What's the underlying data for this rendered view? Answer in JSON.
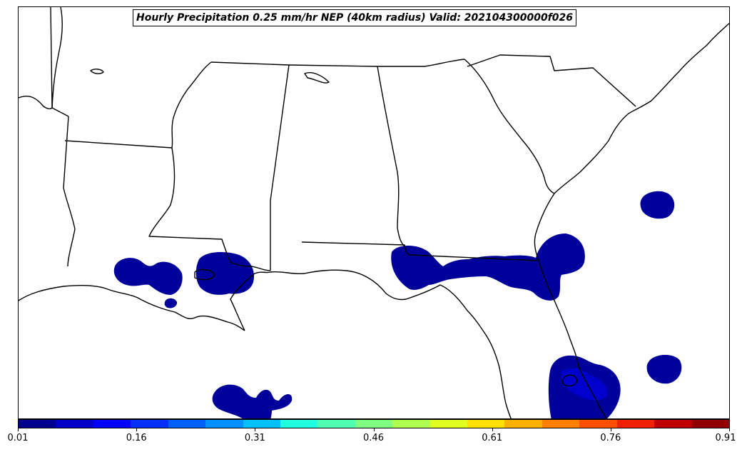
{
  "map": {
    "title": "Hourly Precipitation 0.25 mm/hr NEP (40km radius) Valid: 202104300000f026",
    "region": "Southeastern United States (Gulf Coast)",
    "boundary_color": "#000000",
    "field_color_dark": "#00009b",
    "field_color_mid": "#0000cd"
  },
  "colorbar": {
    "colors": [
      "#00008f",
      "#0000c8",
      "#0000ff",
      "#0030ff",
      "#0060ff",
      "#0090ff",
      "#00c0ff",
      "#20ffdf",
      "#50ffaf",
      "#80ff80",
      "#afff50",
      "#dfff20",
      "#ffe000",
      "#ffb000",
      "#ff8000",
      "#ff5000",
      "#f02000",
      "#c00000",
      "#900000"
    ],
    "tick_labels": [
      "0.01",
      "0.16",
      "0.31",
      "0.46",
      "0.61",
      "0.76",
      "0.91"
    ],
    "tick_fractions": [
      0.0,
      0.1667,
      0.3333,
      0.5,
      0.6667,
      0.8333,
      1.0
    ]
  }
}
